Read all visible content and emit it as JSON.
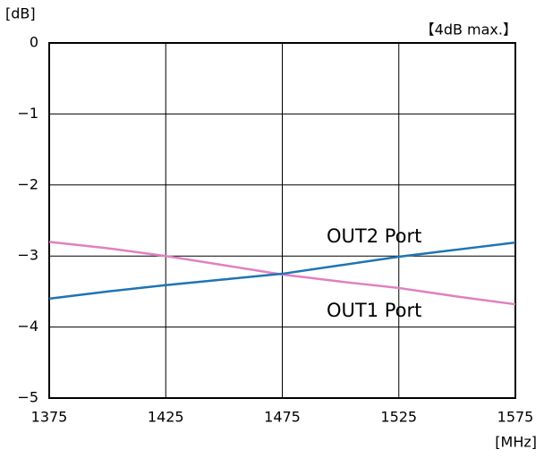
{
  "chart_data": {
    "type": "line",
    "y_label": "[dB]",
    "x_label": "[MHz]",
    "annotation": "【4dB max.】",
    "x": [
      1375,
      1400,
      1425,
      1450,
      1475,
      1500,
      1525,
      1550,
      1575
    ],
    "series": [
      {
        "name": "OUT1 Port",
        "color": "#e080c0",
        "values": [
          -2.8,
          -2.89,
          -3.0,
          -3.13,
          -3.26,
          -3.36,
          -3.45,
          -3.57,
          -3.68
        ]
      },
      {
        "name": "OUT2 Port",
        "color": "#1f74b4",
        "values": [
          -3.6,
          -3.5,
          -3.41,
          -3.33,
          -3.25,
          -3.13,
          -3.01,
          -2.91,
          -2.81
        ]
      }
    ],
    "xlim": [
      1375,
      1575
    ],
    "xticks": [
      1375,
      1425,
      1475,
      1525,
      1575
    ],
    "ylim": [
      -5,
      0
    ],
    "yticks": [
      0,
      {
        "value": -1,
        "label": "−1"
      },
      {
        "value": -2,
        "label": "−2"
      },
      {
        "value": -3,
        "label": "−3"
      },
      {
        "value": -4,
        "label": "−4"
      },
      {
        "value": -5,
        "label": "−5"
      }
    ],
    "grid": true
  }
}
